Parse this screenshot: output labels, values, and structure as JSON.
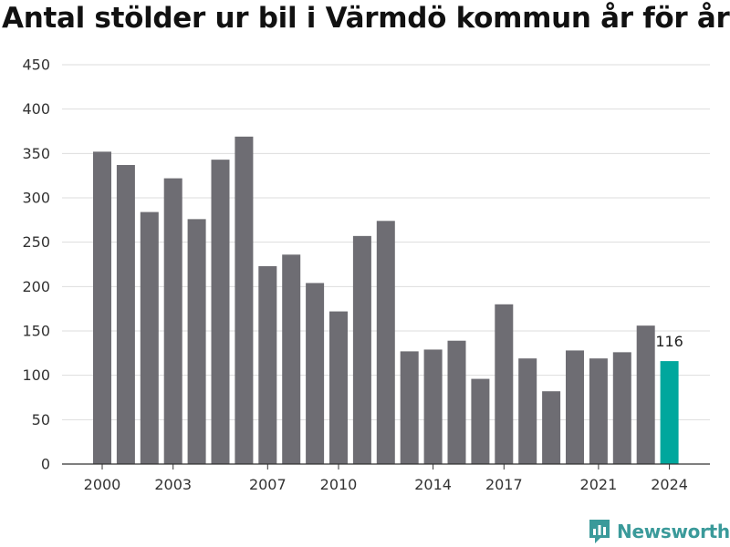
{
  "chart_data": {
    "type": "bar",
    "title": "Antal stölder ur bil i Värmdö kommun år för år",
    "categories": [
      "2000",
      "2001",
      "2002",
      "2003",
      "2004",
      "2005",
      "2006",
      "2007",
      "2008",
      "2009",
      "2010",
      "2011",
      "2012",
      "2013",
      "2014",
      "2015",
      "2016",
      "2017",
      "2018",
      "2019",
      "2020",
      "2021",
      "2022",
      "2023",
      "2024"
    ],
    "values": [
      352,
      337,
      284,
      322,
      276,
      343,
      369,
      223,
      236,
      204,
      172,
      257,
      274,
      127,
      129,
      139,
      96,
      180,
      119,
      82,
      128,
      119,
      126,
      156,
      116
    ],
    "x_tick_labels": [
      "2000",
      "2003",
      "2007",
      "2010",
      "2014",
      "2017",
      "2021",
      "2024"
    ],
    "y_ticks": [
      0,
      50,
      100,
      150,
      200,
      250,
      300,
      350,
      400,
      450
    ],
    "ylim": [
      0,
      450
    ],
    "grid": true,
    "colors": {
      "default": "#6e6d73",
      "highlight": "#00a79d"
    },
    "highlight_category": "2024",
    "data_label": {
      "category": "2024",
      "text": "116"
    },
    "xlabel": "",
    "ylabel": ""
  },
  "brand": {
    "name": "Newsworthy",
    "icon": "newsworthy-logo-icon",
    "color": "#3a9a9a"
  }
}
